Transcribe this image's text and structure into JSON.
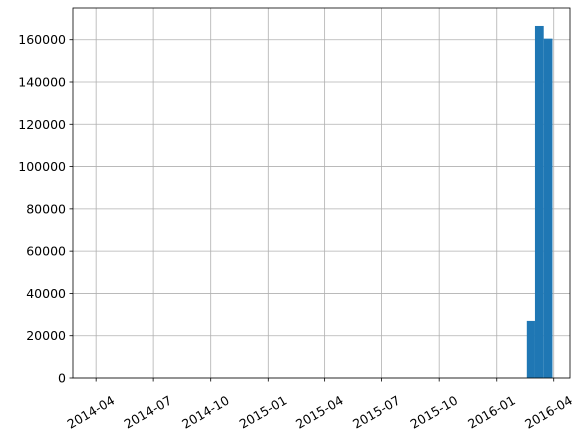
{
  "chart_data": {
    "type": "bar",
    "title": "",
    "xlabel": "",
    "ylabel": "",
    "grid": true,
    "bar_color": "#1f77b4",
    "xlim": [
      "2014-02-23",
      "2016-04-27"
    ],
    "ylim": [
      0,
      175000
    ],
    "x_ticks": [
      "2014-04",
      "2014-07",
      "2014-10",
      "2015-01",
      "2015-04",
      "2015-07",
      "2015-10",
      "2016-01",
      "2016-04"
    ],
    "y_ticks": [
      "0",
      "20000",
      "40000",
      "60000",
      "80000",
      "100000",
      "120000",
      "140000",
      "160000"
    ],
    "bins": [
      {
        "start": "2016-02-18",
        "end": "2016-03-02",
        "count": 27000
      },
      {
        "start": "2016-03-02",
        "end": "2016-03-16",
        "count": 166500
      },
      {
        "start": "2016-03-16",
        "end": "2016-03-30",
        "count": 160500
      }
    ]
  }
}
